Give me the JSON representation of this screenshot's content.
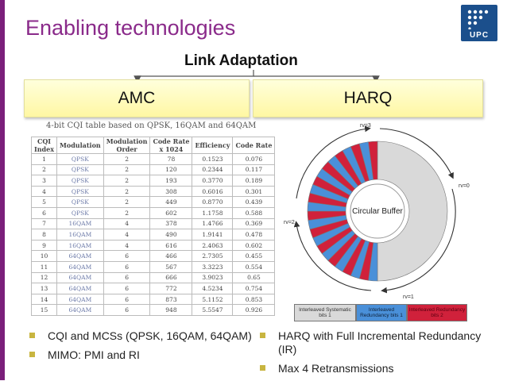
{
  "slide": {
    "title": "Enabling technologies",
    "logo_text": "UPC",
    "link_adaptation": "Link Adaptation",
    "amc_label": "AMC",
    "harq_label": "HARQ"
  },
  "cqi_table": {
    "caption": "4-bit CQI table based on QPSK, 16QAM and 64QAM",
    "headers": [
      [
        "CQI",
        "Index"
      ],
      [
        "Modulation",
        ""
      ],
      [
        "Modulation",
        "Order"
      ],
      [
        "Code Rate",
        "x 1024"
      ],
      [
        "Efficiency",
        ""
      ],
      [
        "Code Rate",
        ""
      ]
    ],
    "rows": [
      [
        "1",
        "QPSK",
        "2",
        "78",
        "0.1523",
        "0.076"
      ],
      [
        "2",
        "QPSK",
        "2",
        "120",
        "0.2344",
        "0.117"
      ],
      [
        "3",
        "QPSK",
        "2",
        "193",
        "0.3770",
        "0.189"
      ],
      [
        "4",
        "QPSK",
        "2",
        "308",
        "0.6016",
        "0.301"
      ],
      [
        "5",
        "QPSK",
        "2",
        "449",
        "0.8770",
        "0.439"
      ],
      [
        "6",
        "QPSK",
        "2",
        "602",
        "1.1758",
        "0.588"
      ],
      [
        "7",
        "16QAM",
        "4",
        "378",
        "1.4766",
        "0.369"
      ],
      [
        "8",
        "16QAM",
        "4",
        "490",
        "1.9141",
        "0.478"
      ],
      [
        "9",
        "16QAM",
        "4",
        "616",
        "2.4063",
        "0.602"
      ],
      [
        "10",
        "64QAM",
        "6",
        "466",
        "2.7305",
        "0.455"
      ],
      [
        "11",
        "64QAM",
        "6",
        "567",
        "3.3223",
        "0.554"
      ],
      [
        "12",
        "64QAM",
        "6",
        "666",
        "3.9023",
        "0.65"
      ],
      [
        "13",
        "64QAM",
        "6",
        "772",
        "4.5234",
        "0.754"
      ],
      [
        "14",
        "64QAM",
        "6",
        "873",
        "5.1152",
        "0.853"
      ],
      [
        "15",
        "64QAM",
        "6",
        "948",
        "5.5547",
        "0.926"
      ]
    ]
  },
  "harq_diagram": {
    "center_label": "Circular Buffer",
    "rv_labels": {
      "rv0": "rv=0",
      "rv1": "rv=1",
      "rv2": "rv=2",
      "rv3": "rv=3"
    },
    "legend": {
      "systematic": "Interleaved Systematic bits 1",
      "redundancy1": "Interleaved Redundancy bits 1",
      "redundancy2": "Interleaved Redundancy bits 2"
    },
    "colors": {
      "systematic": "#d9d9d9",
      "redundancy1": "#4a90d9",
      "redundancy2": "#d0213b"
    }
  },
  "bullets": {
    "left": [
      "CQI and MCSs (QPSK, 16QAM, 64QAM)",
      "MIMO: PMI and RI"
    ],
    "right": [
      "HARQ with Full Incremental Redundancy (IR)",
      "Max 4 Retransmissions"
    ]
  },
  "colors": {
    "title": "#8a2a8a",
    "accent_bar": "#7a1f7a",
    "bullet": "#c8b540"
  }
}
